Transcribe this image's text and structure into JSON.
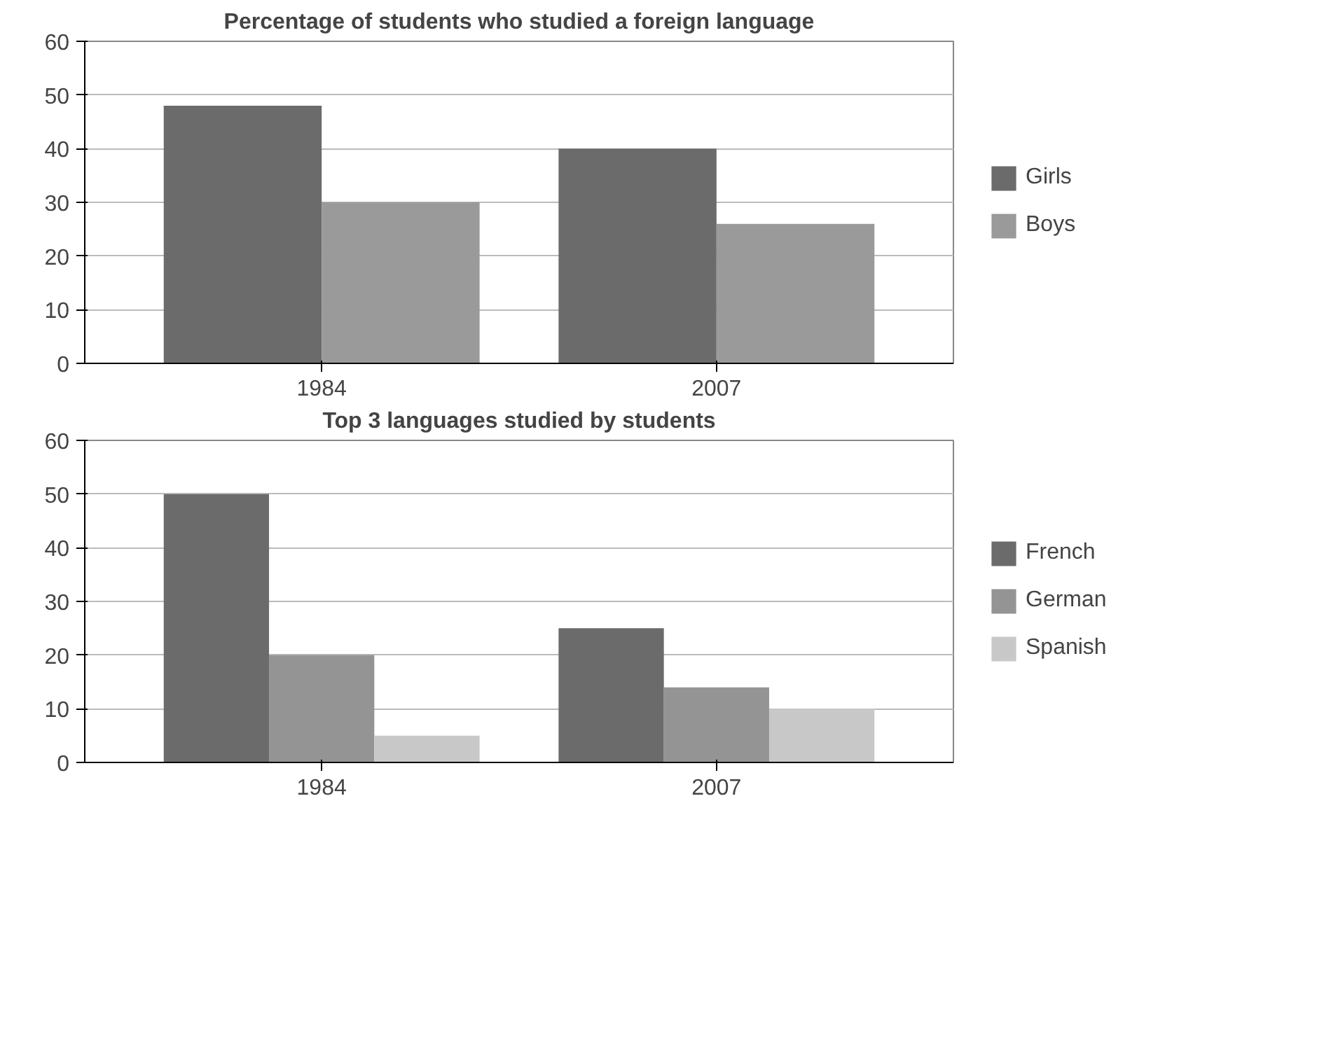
{
  "chart_data": [
    {
      "type": "bar",
      "title": "Percentage of students who studied a foreign language",
      "categories": [
        "1984",
        "2007"
      ],
      "series": [
        {
          "name": "Girls",
          "color": "#6b6b6b",
          "values": [
            48,
            40
          ]
        },
        {
          "name": "Boys",
          "color": "#9a9a9a",
          "values": [
            30,
            26
          ]
        }
      ],
      "ylim": [
        0,
        60
      ],
      "yticks": [
        0,
        10,
        20,
        30,
        40,
        50,
        60
      ],
      "grid": "y",
      "legend": "right"
    },
    {
      "type": "bar",
      "title": "Top 3 languages studied by students",
      "categories": [
        "1984",
        "2007"
      ],
      "series": [
        {
          "name": "French",
          "color": "#6b6b6b",
          "values": [
            50,
            25
          ]
        },
        {
          "name": "German",
          "color": "#949494",
          "values": [
            20,
            14
          ]
        },
        {
          "name": "Spanish",
          "color": "#c8c8c8",
          "values": [
            5,
            10
          ]
        }
      ],
      "ylim": [
        0,
        60
      ],
      "yticks": [
        0,
        10,
        20,
        30,
        40,
        50,
        60
      ],
      "grid": "y",
      "legend": "right"
    }
  ]
}
